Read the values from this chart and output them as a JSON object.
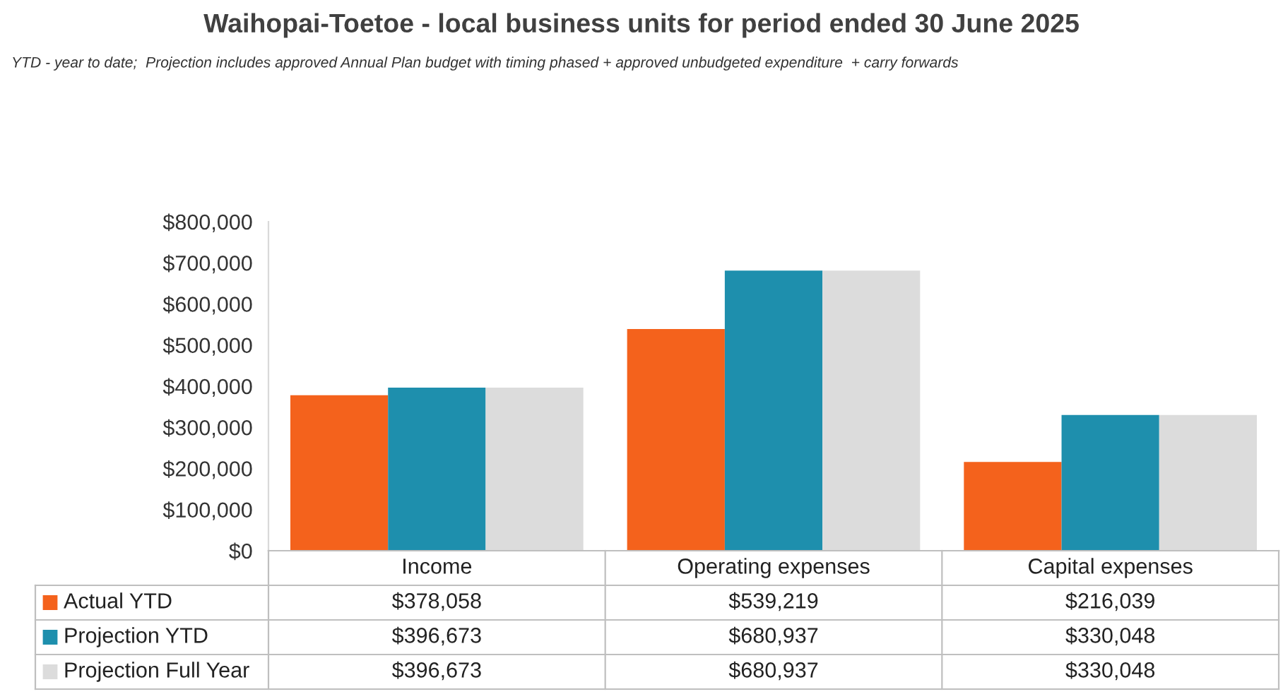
{
  "chart_data": {
    "type": "bar",
    "title": "Waihopai-Toetoe - local business units for period ended 30 June 2025",
    "subtitle": "YTD - year to date;  Projection includes approved Annual Plan budget with timing phased + approved unbudgeted expenditure  + carry forwards",
    "categories": [
      "Income",
      "Operating expenses",
      "Capital expenses"
    ],
    "series": [
      {
        "name": "Actual YTD",
        "color": "#f4621c",
        "values": [
          378058,
          539219,
          216039
        ],
        "value_labels": [
          "$378,058",
          "$539,219",
          "$216,039"
        ]
      },
      {
        "name": "Projection YTD",
        "color": "#1e8fad",
        "values": [
          396673,
          680937,
          330048
        ],
        "value_labels": [
          "$396,673",
          "$680,937",
          "$330,048"
        ]
      },
      {
        "name": "Projection Full Year",
        "color": "#dcdcdc",
        "values": [
          396673,
          680937,
          330048
        ],
        "value_labels": [
          "$396,673",
          "$680,937",
          "$330,048"
        ]
      }
    ],
    "ylim": [
      0,
      800000
    ],
    "yticks": [
      {
        "value": 0,
        "label": "$0"
      },
      {
        "value": 100000,
        "label": "$100,000"
      },
      {
        "value": 200000,
        "label": "$200,000"
      },
      {
        "value": 300000,
        "label": "$300,000"
      },
      {
        "value": 400000,
        "label": "$400,000"
      },
      {
        "value": 500000,
        "label": "$500,000"
      },
      {
        "value": 600000,
        "label": "$600,000"
      },
      {
        "value": 700000,
        "label": "$700,000"
      },
      {
        "value": 800000,
        "label": "$800,000"
      }
    ],
    "legend": "bottom",
    "grid": false
  }
}
